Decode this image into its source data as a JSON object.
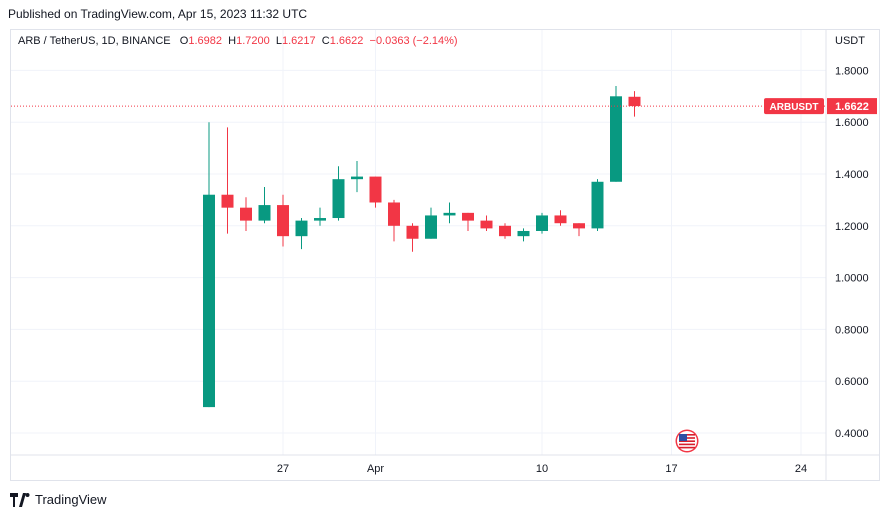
{
  "header": {
    "published": "Published on TradingView.com, Apr 15, 2023 11:32 UTC"
  },
  "legend": {
    "symbol": "ARB / TetherUS, 1D, BINANCE",
    "o_label": "O",
    "o_value": "1.6982",
    "h_label": "H",
    "h_value": "1.7200",
    "l_label": "L",
    "l_value": "1.6217",
    "c_label": "C",
    "c_value": "1.6622",
    "change": "−0.0363 (−2.14%)"
  },
  "axis": {
    "unit": "USDT"
  },
  "price_tag": {
    "symbol": "ARBUSDT",
    "value": "1.6622"
  },
  "footer": {
    "brand": "TradingView"
  },
  "colors": {
    "up": "#089981",
    "down": "#f23645",
    "grid": "#f0f3fa"
  },
  "chart_data": {
    "type": "candlestick",
    "y_ticks": [
      {
        "value": 1.8,
        "label": "1.8000"
      },
      {
        "value": 1.6,
        "label": "1.6000"
      },
      {
        "value": 1.4,
        "label": "1.4000"
      },
      {
        "value": 1.2,
        "label": "1.2000"
      },
      {
        "value": 1.0,
        "label": "1.0000"
      },
      {
        "value": 0.8,
        "label": "0.8000"
      },
      {
        "value": 0.6,
        "label": "0.6000"
      },
      {
        "value": 0.4,
        "label": "0.4000"
      }
    ],
    "x_ticks": [
      {
        "day": 27,
        "label": "27"
      },
      {
        "day": 32,
        "label": "Apr"
      },
      {
        "day": 41,
        "label": "10"
      },
      {
        "day": 48,
        "label": "17"
      },
      {
        "day": 55,
        "label": "24"
      }
    ],
    "last_price": 1.6622,
    "candles": [
      {
        "date": "2023-03-23",
        "day": 23,
        "o": 0.5,
        "h": 1.6,
        "l": 0.5,
        "c": 1.32
      },
      {
        "date": "2023-03-24",
        "day": 24,
        "o": 1.32,
        "h": 1.58,
        "l": 1.17,
        "c": 1.27
      },
      {
        "date": "2023-03-25",
        "day": 25,
        "o": 1.27,
        "h": 1.31,
        "l": 1.18,
        "c": 1.22
      },
      {
        "date": "2023-03-26",
        "day": 26,
        "o": 1.22,
        "h": 1.35,
        "l": 1.21,
        "c": 1.28
      },
      {
        "date": "2023-03-27",
        "day": 27,
        "o": 1.28,
        "h": 1.32,
        "l": 1.12,
        "c": 1.16
      },
      {
        "date": "2023-03-28",
        "day": 28,
        "o": 1.16,
        "h": 1.23,
        "l": 1.11,
        "c": 1.22
      },
      {
        "date": "2023-03-29",
        "day": 29,
        "o": 1.22,
        "h": 1.27,
        "l": 1.2,
        "c": 1.23
      },
      {
        "date": "2023-03-30",
        "day": 30,
        "o": 1.23,
        "h": 1.43,
        "l": 1.22,
        "c": 1.38
      },
      {
        "date": "2023-03-31",
        "day": 31,
        "o": 1.38,
        "h": 1.45,
        "l": 1.33,
        "c": 1.39
      },
      {
        "date": "2023-04-01",
        "day": 32,
        "o": 1.39,
        "h": 1.39,
        "l": 1.27,
        "c": 1.29
      },
      {
        "date": "2023-04-02",
        "day": 33,
        "o": 1.29,
        "h": 1.3,
        "l": 1.14,
        "c": 1.2
      },
      {
        "date": "2023-04-03",
        "day": 34,
        "o": 1.2,
        "h": 1.21,
        "l": 1.1,
        "c": 1.15
      },
      {
        "date": "2023-04-04",
        "day": 35,
        "o": 1.15,
        "h": 1.27,
        "l": 1.15,
        "c": 1.24
      },
      {
        "date": "2023-04-05",
        "day": 36,
        "o": 1.24,
        "h": 1.29,
        "l": 1.21,
        "c": 1.25
      },
      {
        "date": "2023-04-06",
        "day": 37,
        "o": 1.25,
        "h": 1.25,
        "l": 1.18,
        "c": 1.22
      },
      {
        "date": "2023-04-07",
        "day": 38,
        "o": 1.22,
        "h": 1.24,
        "l": 1.18,
        "c": 1.19
      },
      {
        "date": "2023-04-08",
        "day": 39,
        "o": 1.2,
        "h": 1.21,
        "l": 1.15,
        "c": 1.16
      },
      {
        "date": "2023-04-09",
        "day": 40,
        "o": 1.16,
        "h": 1.19,
        "l": 1.14,
        "c": 1.18
      },
      {
        "date": "2023-04-10",
        "day": 41,
        "o": 1.18,
        "h": 1.25,
        "l": 1.17,
        "c": 1.24
      },
      {
        "date": "2023-04-11",
        "day": 42,
        "o": 1.24,
        "h": 1.26,
        "l": 1.2,
        "c": 1.21
      },
      {
        "date": "2023-04-12",
        "day": 43,
        "o": 1.21,
        "h": 1.21,
        "l": 1.16,
        "c": 1.19
      },
      {
        "date": "2023-04-13",
        "day": 44,
        "o": 1.19,
        "h": 1.38,
        "l": 1.18,
        "c": 1.37
      },
      {
        "date": "2023-04-14",
        "day": 45,
        "o": 1.37,
        "h": 1.74,
        "l": 1.37,
        "c": 1.7
      },
      {
        "date": "2023-04-15",
        "day": 46,
        "o": 1.6982,
        "h": 1.72,
        "l": 1.6217,
        "c": 1.6622
      }
    ]
  }
}
